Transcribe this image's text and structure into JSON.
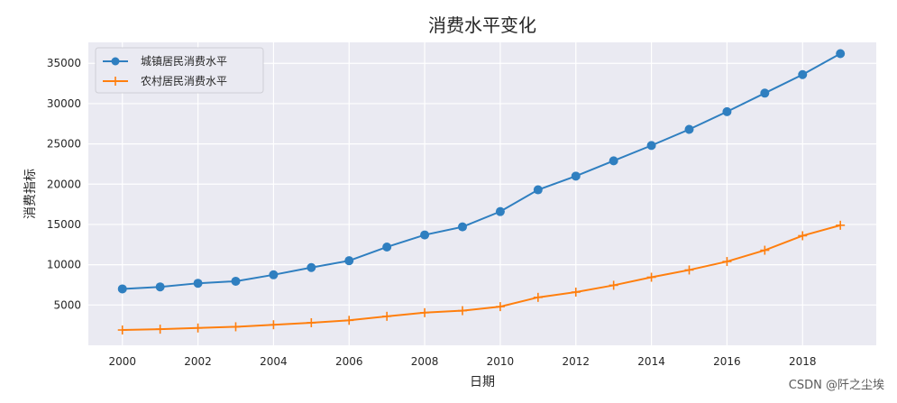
{
  "chart_data": {
    "type": "line",
    "title": "消费水平变化",
    "xlabel": "日期",
    "ylabel": "消费指标",
    "x": [
      2000,
      2001,
      2002,
      2003,
      2004,
      2005,
      2006,
      2007,
      2008,
      2009,
      2010,
      2011,
      2012,
      2013,
      2014,
      2015,
      2016,
      2017,
      2018,
      2019
    ],
    "xlim": [
      1999.1,
      2019.95
    ],
    "ylim": [
      0,
      37600
    ],
    "xticks": [
      2000,
      2002,
      2004,
      2006,
      2008,
      2010,
      2012,
      2014,
      2016,
      2018
    ],
    "yticks": [
      5000,
      10000,
      15000,
      20000,
      25000,
      30000,
      35000
    ],
    "grid": true,
    "legend_position": "top-left",
    "series": [
      {
        "name": "城镇居民消费水平",
        "color": "#2f7fc0",
        "marker": "circle",
        "values": [
          7000,
          7250,
          7700,
          7950,
          8750,
          9650,
          10500,
          12200,
          13700,
          14700,
          16600,
          19300,
          21000,
          22900,
          24800,
          26800,
          29000,
          31300,
          33600,
          36200
        ]
      },
      {
        "name": "农村居民消费水平",
        "color": "#ff7f0e",
        "marker": "plus",
        "values": [
          1900,
          2000,
          2150,
          2300,
          2550,
          2800,
          3100,
          3600,
          4050,
          4300,
          4800,
          5950,
          6600,
          7450,
          8450,
          9350,
          10400,
          11800,
          13600,
          14900
        ]
      }
    ]
  },
  "watermark": "CSDN @阡之尘埃"
}
